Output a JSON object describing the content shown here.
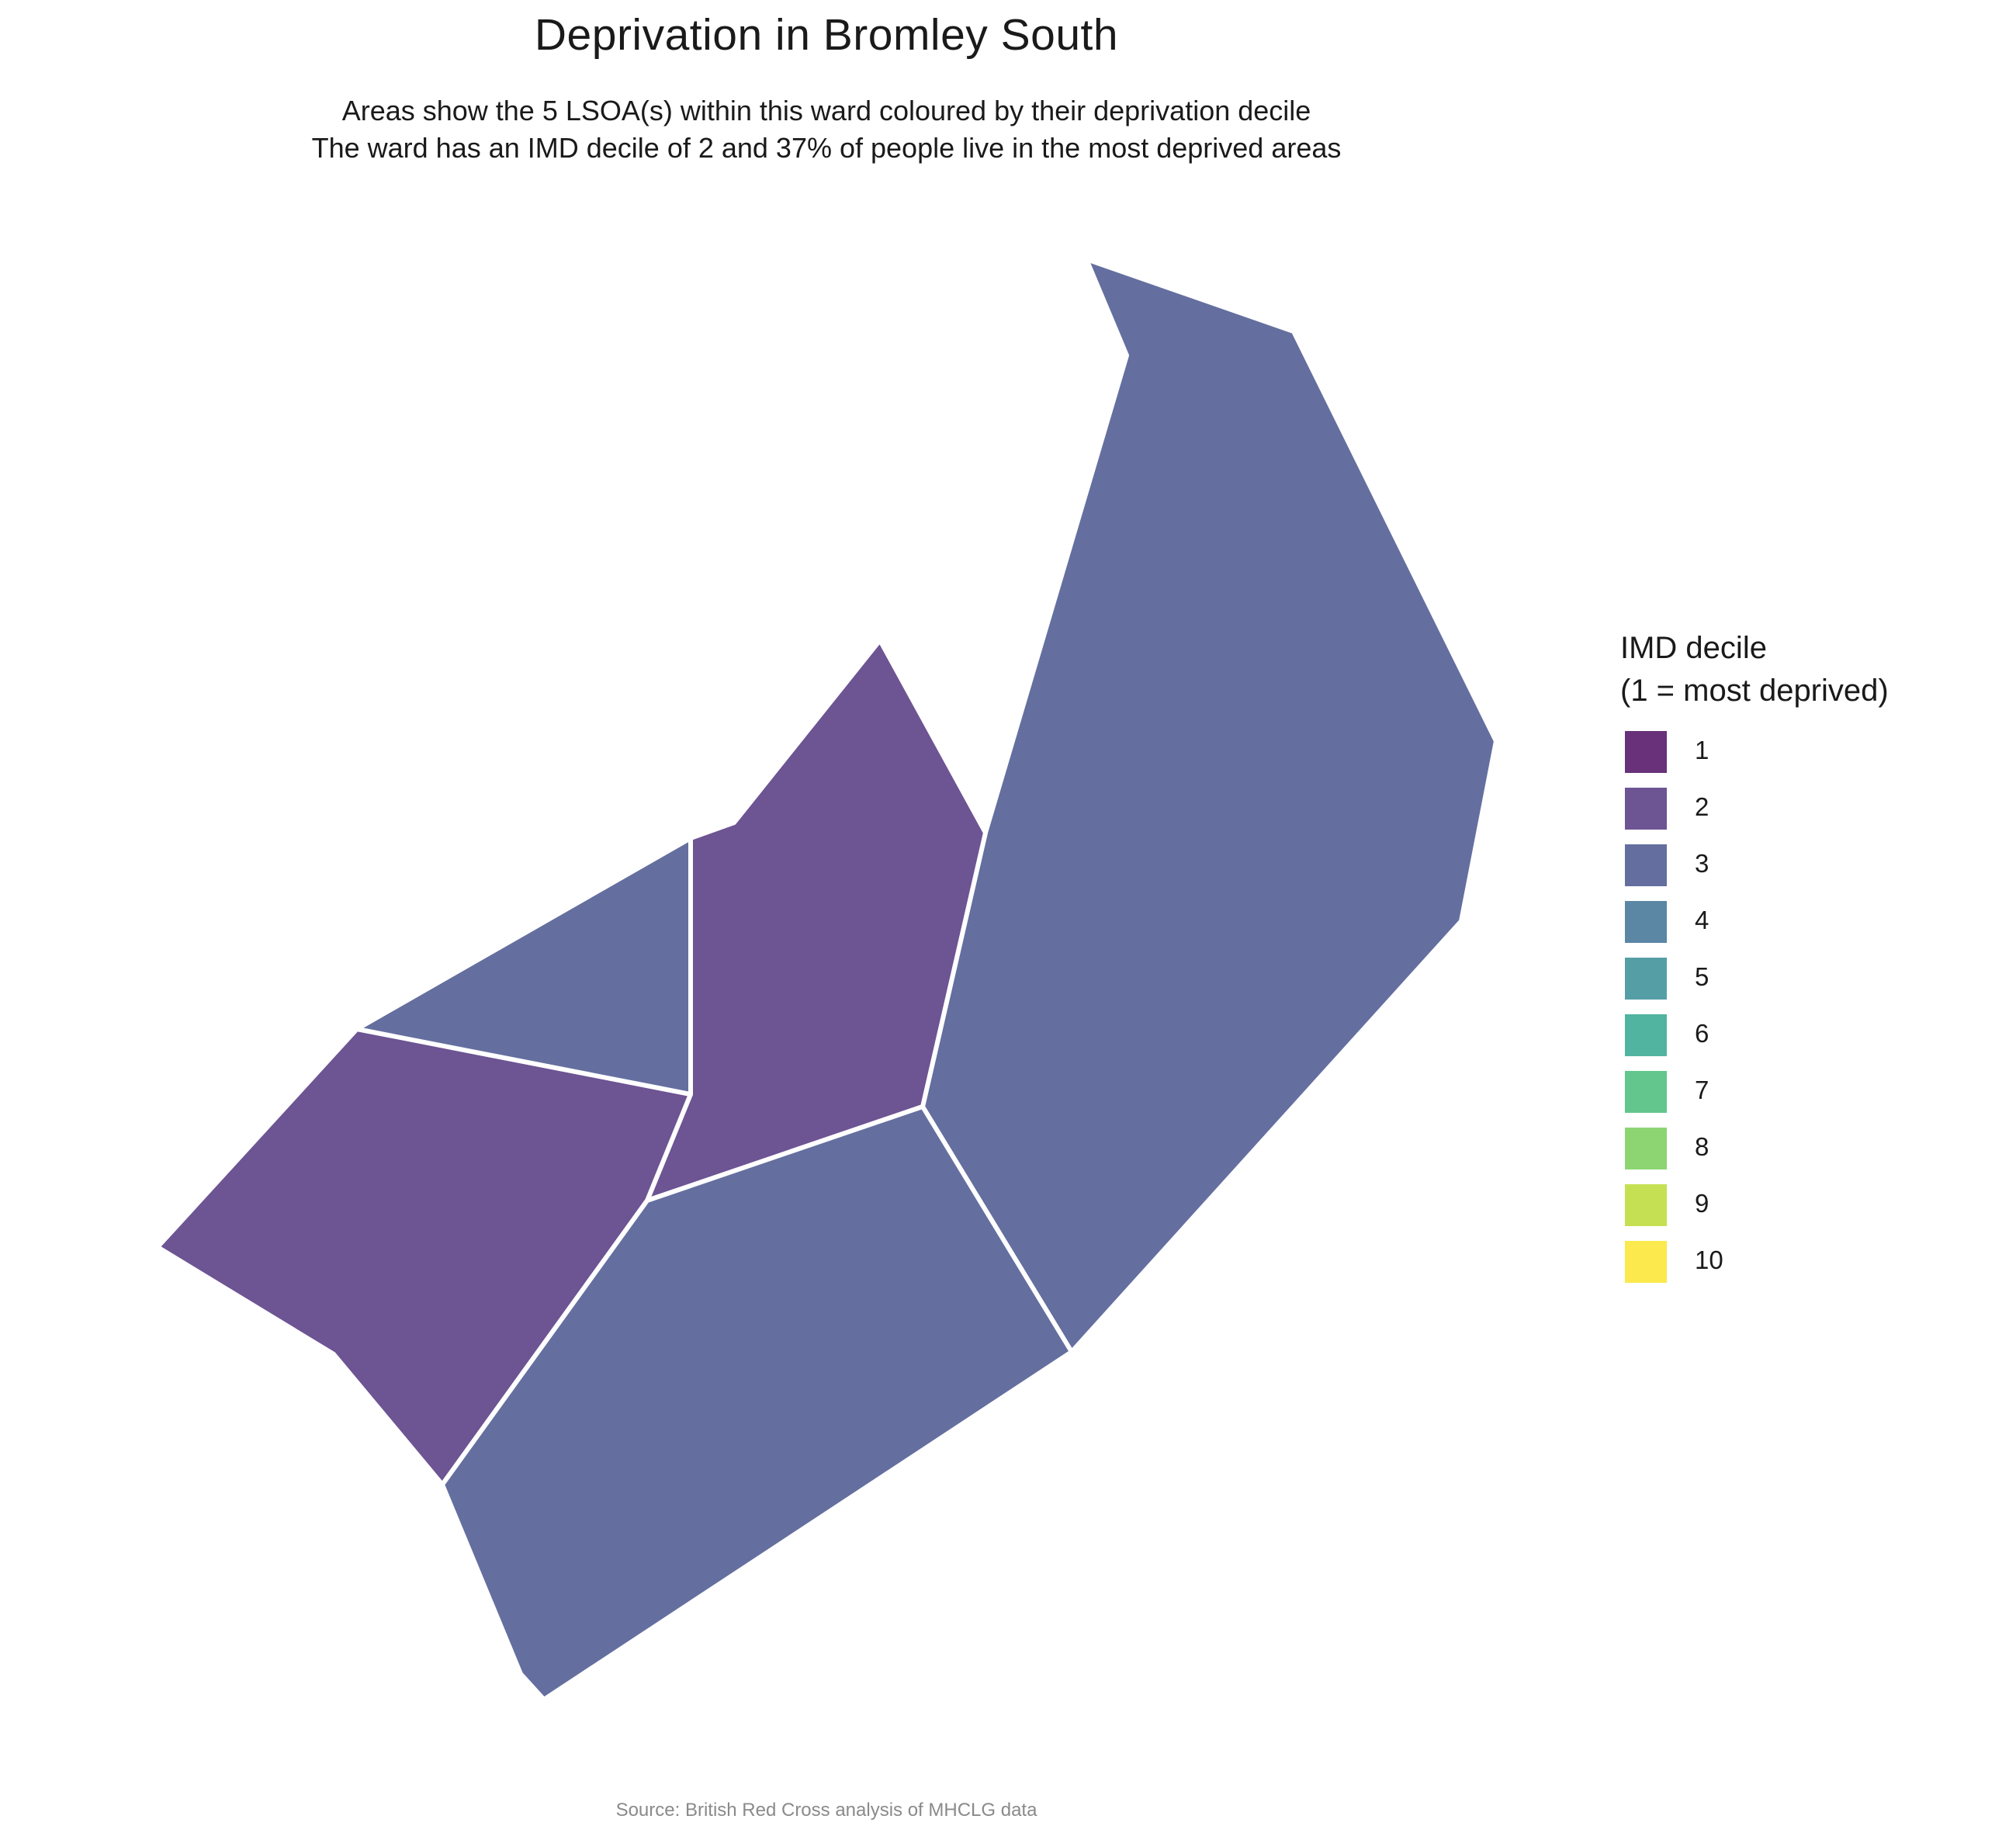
{
  "title": "Deprivation in Bromley South",
  "subtitle_line1": "Areas show the 5 LSOA(s) within this ward coloured by their deprivation decile",
  "subtitle_line2": "The ward has an IMD decile of 2 and 37% of people live in the most deprived areas",
  "caption": "Source: British Red Cross analysis of MHCLG data",
  "legend": {
    "title_line1": "IMD decile",
    "title_line2": "(1 = most deprived)",
    "items": [
      {
        "label": "1",
        "color": "#68317a"
      },
      {
        "label": "2",
        "color": "#6d5493"
      },
      {
        "label": "3",
        "color": "#646f9f"
      },
      {
        "label": "4",
        "color": "#5b87a4"
      },
      {
        "label": "5",
        "color": "#569ea6"
      },
      {
        "label": "6",
        "color": "#50b4a0"
      },
      {
        "label": "7",
        "color": "#62c68d"
      },
      {
        "label": "8",
        "color": "#8dd573"
      },
      {
        "label": "9",
        "color": "#c5e153"
      },
      {
        "label": "10",
        "color": "#fbe94e"
      }
    ]
  },
  "areas": [
    {
      "name": "northeast",
      "decile": 3
    },
    {
      "name": "central",
      "decile": 2
    },
    {
      "name": "west",
      "decile": 2
    },
    {
      "name": "northwest",
      "decile": 3
    },
    {
      "name": "south",
      "decile": 3
    }
  ]
}
